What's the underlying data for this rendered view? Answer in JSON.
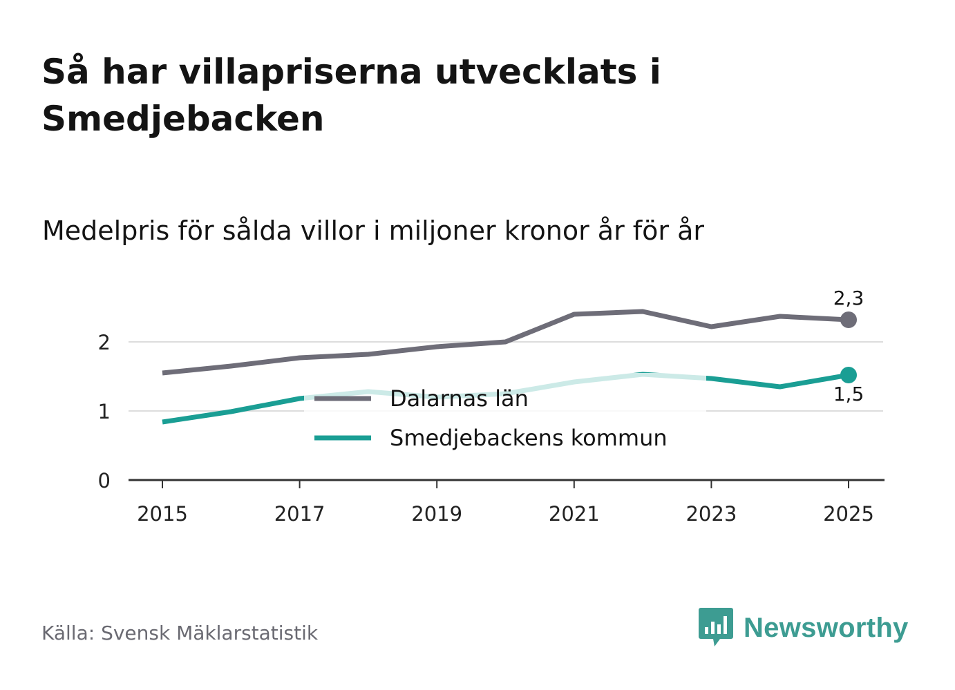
{
  "title": "Så har villapriserna utvecklats i Smedjebacken",
  "subtitle": "Medelpris för sålda villor i miljoner kronor år för år",
  "source": "Källa: Svensk Mäklarstatistik",
  "brand": {
    "name": "Newsworthy",
    "color": "#3d9c92"
  },
  "colors": {
    "series1": "#6e6d78",
    "series2": "#1a9e94",
    "grid": "#dddddd",
    "axis": "#333333"
  },
  "chart_data": {
    "type": "line",
    "title": "Så har villapriserna utvecklats i Smedjebacken",
    "subtitle": "Medelpris för sålda villor i miljoner kronor år för år",
    "x": [
      2015,
      2016,
      2017,
      2018,
      2019,
      2020,
      2021,
      2022,
      2023,
      2024,
      2025
    ],
    "x_ticks": [
      "2015",
      "2017",
      "2019",
      "2021",
      "2023",
      "2025"
    ],
    "y_ticks": [
      "0",
      "1",
      "2"
    ],
    "ylim": [
      0,
      2.5
    ],
    "series": [
      {
        "name": "Dalarnas län",
        "values": [
          1.55,
          1.65,
          1.77,
          1.82,
          1.93,
          2.0,
          2.4,
          2.44,
          2.22,
          2.37,
          2.32
        ],
        "end_label": "2,3"
      },
      {
        "name": "Smedjebackens kommun",
        "values": [
          0.84,
          0.99,
          1.18,
          1.28,
          1.2,
          1.25,
          1.42,
          1.53,
          1.47,
          1.35,
          1.52
        ],
        "end_label": "1,5"
      }
    ],
    "legend": [
      "Dalarnas län",
      "Smedjebackens kommun"
    ],
    "legend_position": "center"
  }
}
